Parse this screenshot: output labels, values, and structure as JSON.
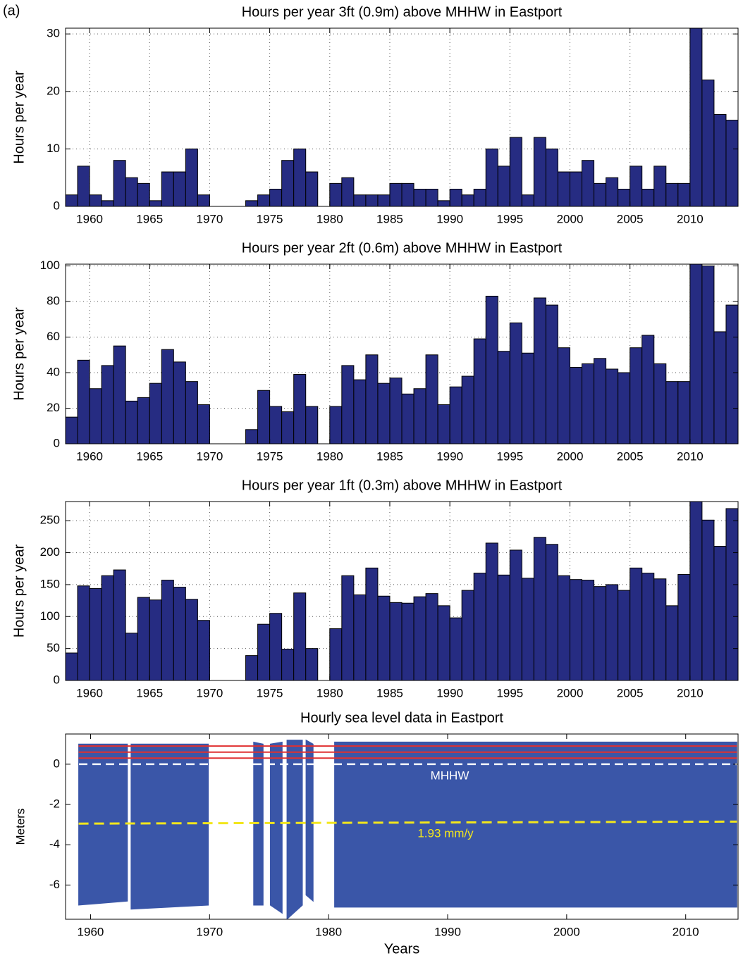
{
  "label": "(a)",
  "chart_data": [
    {
      "type": "histogram",
      "title": "Hours per year 3ft (0.9m) above MHHW in Eastport",
      "ylabel": "Hours per year",
      "bins": [
        1958,
        1959,
        1960,
        1961,
        1962,
        1963,
        1964,
        1965,
        1966,
        1967,
        1968,
        1969,
        1970,
        1971,
        1972,
        1973,
        1974,
        1975,
        1976,
        1977,
        1978,
        1979,
        1980,
        1981,
        1982,
        1983,
        1984,
        1985,
        1986,
        1987,
        1988,
        1989,
        1990,
        1991,
        1992,
        1993,
        1994,
        1995,
        1996,
        1997,
        1998,
        1999,
        2000,
        2001,
        2002,
        2003,
        2004,
        2005,
        2006,
        2007,
        2008,
        2009,
        2010,
        2011,
        2012,
        2013,
        2014
      ],
      "values": [
        2,
        7,
        2,
        1,
        8,
        5,
        4,
        1,
        6,
        6,
        10,
        2,
        0,
        0,
        0,
        1,
        2,
        3,
        8,
        10,
        6,
        0,
        4,
        5,
        2,
        2,
        2,
        4,
        4,
        3,
        3,
        1,
        3,
        2,
        3,
        10,
        7,
        12,
        2,
        12,
        10,
        6,
        6,
        8,
        4,
        5,
        3,
        7,
        3,
        7,
        4,
        4,
        31,
        22,
        16,
        15
      ],
      "color": "#262c82",
      "xlim": [
        1958,
        2014
      ],
      "ylim": [
        0,
        31
      ],
      "xticks": [
        1960,
        1965,
        1970,
        1975,
        1980,
        1985,
        1990,
        1995,
        2000,
        2005,
        2010
      ],
      "yticks": [
        0,
        10,
        20,
        30
      ],
      "grid": true
    },
    {
      "type": "histogram",
      "title": "Hours per year 2ft (0.6m) above MHHW in Eastport",
      "ylabel": "Hours per year",
      "bins": [
        1958,
        1959,
        1960,
        1961,
        1962,
        1963,
        1964,
        1965,
        1966,
        1967,
        1968,
        1969,
        1970,
        1971,
        1972,
        1973,
        1974,
        1975,
        1976,
        1977,
        1978,
        1979,
        1980,
        1981,
        1982,
        1983,
        1984,
        1985,
        1986,
        1987,
        1988,
        1989,
        1990,
        1991,
        1992,
        1993,
        1994,
        1995,
        1996,
        1997,
        1998,
        1999,
        2000,
        2001,
        2002,
        2003,
        2004,
        2005,
        2006,
        2007,
        2008,
        2009,
        2010,
        2011,
        2012,
        2013,
        2014
      ],
      "values": [
        15,
        47,
        31,
        44,
        55,
        24,
        26,
        34,
        53,
        46,
        35,
        22,
        0,
        0,
        0,
        8,
        30,
        21,
        18,
        39,
        21,
        0,
        21,
        44,
        36,
        50,
        34,
        37,
        28,
        31,
        50,
        22,
        32,
        38,
        59,
        83,
        52,
        68,
        51,
        82,
        78,
        54,
        43,
        45,
        48,
        42,
        40,
        54,
        61,
        45,
        35,
        35,
        101,
        100,
        63,
        78
      ],
      "color": "#262c82",
      "xlim": [
        1958,
        2014
      ],
      "ylim": [
        0,
        101
      ],
      "xticks": [
        1960,
        1965,
        1970,
        1975,
        1980,
        1985,
        1990,
        1995,
        2000,
        2005,
        2010
      ],
      "yticks": [
        0,
        20,
        40,
        60,
        80,
        100
      ],
      "grid": true
    },
    {
      "type": "histogram",
      "title": "Hours per year 1ft (0.3m) above MHHW in Eastport",
      "ylabel": "Hours per year",
      "bins": [
        1958,
        1959,
        1960,
        1961,
        1962,
        1963,
        1964,
        1965,
        1966,
        1967,
        1968,
        1969,
        1970,
        1971,
        1972,
        1973,
        1974,
        1975,
        1976,
        1977,
        1978,
        1979,
        1980,
        1981,
        1982,
        1983,
        1984,
        1985,
        1986,
        1987,
        1988,
        1989,
        1990,
        1991,
        1992,
        1993,
        1994,
        1995,
        1996,
        1997,
        1998,
        1999,
        2000,
        2001,
        2002,
        2003,
        2004,
        2005,
        2006,
        2007,
        2008,
        2009,
        2010,
        2011,
        2012,
        2013,
        2014
      ],
      "values": [
        43,
        148,
        144,
        164,
        173,
        74,
        130,
        126,
        157,
        146,
        127,
        94,
        0,
        0,
        0,
        39,
        88,
        105,
        49,
        137,
        50,
        0,
        81,
        164,
        134,
        176,
        132,
        122,
        121,
        131,
        136,
        117,
        98,
        141,
        168,
        215,
        165,
        204,
        160,
        224,
        213,
        164,
        158,
        157,
        147,
        150,
        141,
        176,
        168,
        159,
        117,
        166,
        280,
        251,
        210,
        269
      ],
      "color": "#262c82",
      "xlim": [
        1958,
        2014
      ],
      "ylim": [
        0,
        280
      ],
      "xticks": [
        1960,
        1965,
        1970,
        1975,
        1980,
        1985,
        1990,
        1995,
        2000,
        2005,
        2010
      ],
      "yticks": [
        0,
        50,
        100,
        150,
        200,
        250
      ],
      "grid": true
    },
    {
      "type": "band",
      "title": "Hourly sea level data in Eastport",
      "xlabel": "Years",
      "ylabel": "Meters",
      "x": [
        1959,
        1963.1,
        1963.2,
        1963.4,
        1969.9,
        1970.0,
        1973.7,
        1974.5,
        1974.6,
        1975.1,
        1976.1,
        1976.3,
        1976.5,
        1977.8,
        1977.9,
        1978.1,
        1978.7,
        1979,
        1980.5,
        2014.3
      ],
      "upper": [
        1.0,
        1.0,
        null,
        1.0,
        1.0,
        null,
        1.1,
        1.0,
        null,
        1.0,
        1.1,
        null,
        1.2,
        1.2,
        null,
        1.2,
        1.0,
        null,
        1.1,
        1.1
      ],
      "lower": [
        -7.0,
        -6.8,
        null,
        -7.2,
        -7.0,
        null,
        -7.0,
        -7.0,
        null,
        -7.0,
        -7.4,
        null,
        -7.7,
        -7.0,
        null,
        -6.5,
        -6.8,
        null,
        -7.1,
        -7.1
      ],
      "color": "#3a56a8",
      "hlines": [
        {
          "value": 0.3,
          "color": "#e03030"
        },
        {
          "value": 0.6,
          "color": "#e03030"
        },
        {
          "value": 0.9,
          "color": "#e03030"
        }
      ],
      "mhhw": {
        "value": 0,
        "color": "#ffffff",
        "label": "MHHW"
      },
      "trend": {
        "x": [
          1959,
          2014.3
        ],
        "y": [
          -2.95,
          -2.85
        ],
        "color": "#f2e61c",
        "label": "1.93 mm/y"
      },
      "xlim": [
        1957.9,
        2014.4
      ],
      "ylim": [
        -7.7,
        1.5
      ],
      "xticks": [
        1960,
        1970,
        1980,
        1990,
        2000,
        2010
      ],
      "yticks": [
        -6,
        -4,
        -2,
        0
      ],
      "grid": false
    }
  ]
}
